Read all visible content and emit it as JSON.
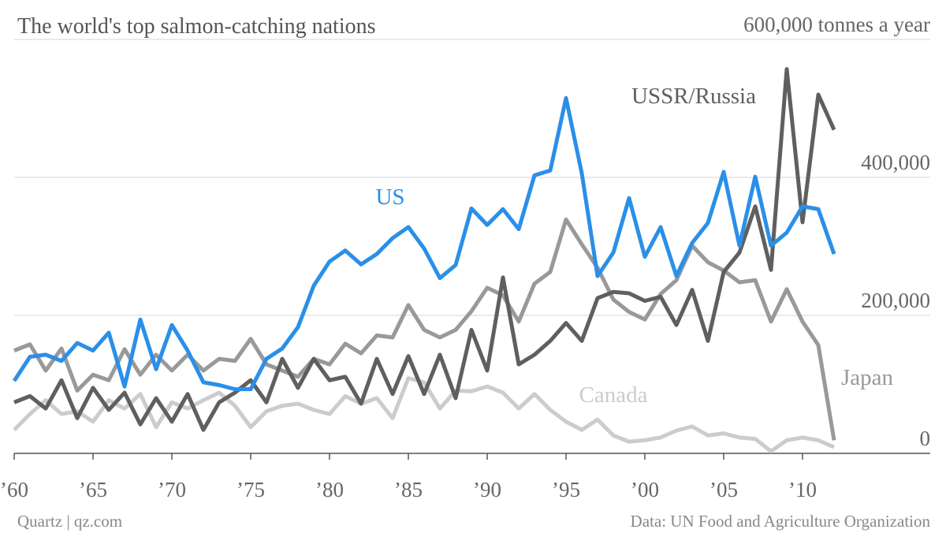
{
  "chart_data": {
    "type": "line",
    "title": "The world's top salmon-catching nations",
    "source": "Quartz | qz.com",
    "note": "Data: UN Food and Agriculture Organization",
    "x": [
      1960,
      1961,
      1962,
      1963,
      1964,
      1965,
      1966,
      1967,
      1968,
      1969,
      1970,
      1971,
      1972,
      1973,
      1974,
      1975,
      1976,
      1977,
      1978,
      1979,
      1980,
      1981,
      1982,
      1983,
      1984,
      1985,
      1986,
      1987,
      1988,
      1989,
      1990,
      1991,
      1992,
      1993,
      1994,
      1995,
      1996,
      1997,
      1998,
      1999,
      2000,
      2001,
      2002,
      2003,
      2004,
      2005,
      2006,
      2007,
      2008,
      2009,
      2010,
      2011,
      2012
    ],
    "xlim": [
      1960,
      2012
    ],
    "xticks": [
      {
        "value": 1960,
        "label": "’60"
      },
      {
        "value": 1965,
        "label": "’65"
      },
      {
        "value": 1970,
        "label": "’70"
      },
      {
        "value": 1975,
        "label": "’75"
      },
      {
        "value": 1980,
        "label": "’80"
      },
      {
        "value": 1985,
        "label": "’85"
      },
      {
        "value": 1990,
        "label": "’90"
      },
      {
        "value": 1995,
        "label": "’95"
      },
      {
        "value": 2000,
        "label": "’00"
      },
      {
        "value": 2005,
        "label": "’05"
      },
      {
        "value": 2010,
        "label": "’10"
      }
    ],
    "ylim": [
      0,
      600000
    ],
    "yticks": [
      0,
      {
        "value": 200000,
        "label": "200,000"
      },
      {
        "value": 400000,
        "label": "400,000"
      },
      {
        "value": 600000,
        "label": "600,000 tonnes a year"
      }
    ],
    "grid": true,
    "series": [
      {
        "name": "Canada",
        "color": "#cccccc",
        "values": [
          34000,
          57000,
          77000,
          57000,
          61000,
          46000,
          77000,
          65000,
          86000,
          38000,
          74000,
          65000,
          77000,
          88000,
          69000,
          38000,
          61000,
          69000,
          72000,
          63000,
          57000,
          83000,
          72000,
          80000,
          51000,
          109000,
          103000,
          65000,
          91000,
          90000,
          97000,
          88000,
          65000,
          86000,
          63000,
          46000,
          34000,
          49000,
          26000,
          17000,
          19000,
          23000,
          33000,
          39000,
          26000,
          29000,
          23000,
          21000,
          3000,
          19000,
          23000,
          19000,
          9000
        ]
      },
      {
        "name": "Japan",
        "color": "#999999",
        "values": [
          149000,
          158000,
          120000,
          152000,
          91000,
          114000,
          106000,
          151000,
          114000,
          143000,
          120000,
          143000,
          120000,
          137000,
          134000,
          166000,
          129000,
          120000,
          111000,
          137000,
          129000,
          159000,
          145000,
          171000,
          168000,
          215000,
          179000,
          168000,
          179000,
          206000,
          240000,
          229000,
          191000,
          246000,
          263000,
          339000,
          303000,
          269000,
          223000,
          205000,
          194000,
          231000,
          251000,
          301000,
          277000,
          265000,
          248000,
          251000,
          191000,
          238000,
          191000,
          157000,
          19000
        ]
      },
      {
        "name": "USSR/Russia",
        "color": "#5f5f5f",
        "values": [
          74000,
          83000,
          65000,
          106000,
          51000,
          95000,
          63000,
          88000,
          42000,
          80000,
          46000,
          86000,
          34000,
          74000,
          88000,
          106000,
          74000,
          137000,
          95000,
          137000,
          106000,
          111000,
          72000,
          137000,
          86000,
          141000,
          86000,
          143000,
          80000,
          179000,
          120000,
          255000,
          129000,
          143000,
          163000,
          189000,
          163000,
          225000,
          234000,
          232000,
          221000,
          227000,
          186000,
          237000,
          163000,
          263000,
          291000,
          358000,
          266000,
          557000,
          335000,
          520000,
          469000
        ]
      },
      {
        "name": "US",
        "color": "#2b8fe8",
        "values": [
          105000,
          140000,
          143000,
          134000,
          160000,
          149000,
          175000,
          97000,
          194000,
          122000,
          186000,
          149000,
          103000,
          99000,
          93000,
          93000,
          137000,
          152000,
          183000,
          243000,
          278000,
          294000,
          274000,
          289000,
          312000,
          328000,
          297000,
          254000,
          273000,
          355000,
          331000,
          354000,
          325000,
          403000,
          410000,
          515000,
          406000,
          257000,
          291000,
          370000,
          285000,
          328000,
          257000,
          305000,
          334000,
          408000,
          301000,
          401000,
          301000,
          320000,
          358000,
          354000,
          289000
        ]
      }
    ]
  }
}
